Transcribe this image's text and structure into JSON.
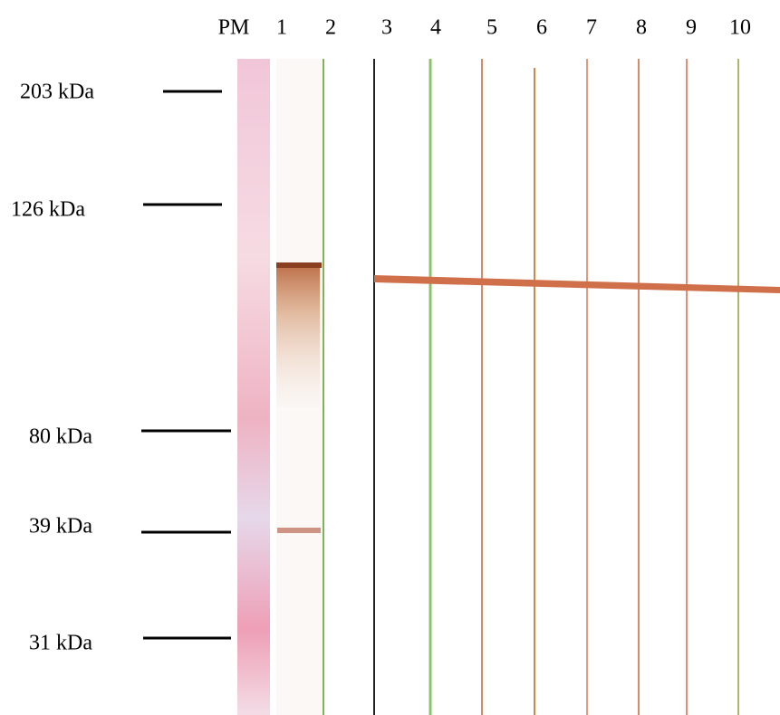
{
  "lanes": [
    "PM",
    "1",
    "2",
    "3",
    "4",
    "5",
    "6",
    "7",
    "8",
    "9",
    "10"
  ],
  "markers": [
    "203 kDa",
    "126 kDa",
    "80 kDa",
    "39 kDa",
    "31 kDa"
  ]
}
